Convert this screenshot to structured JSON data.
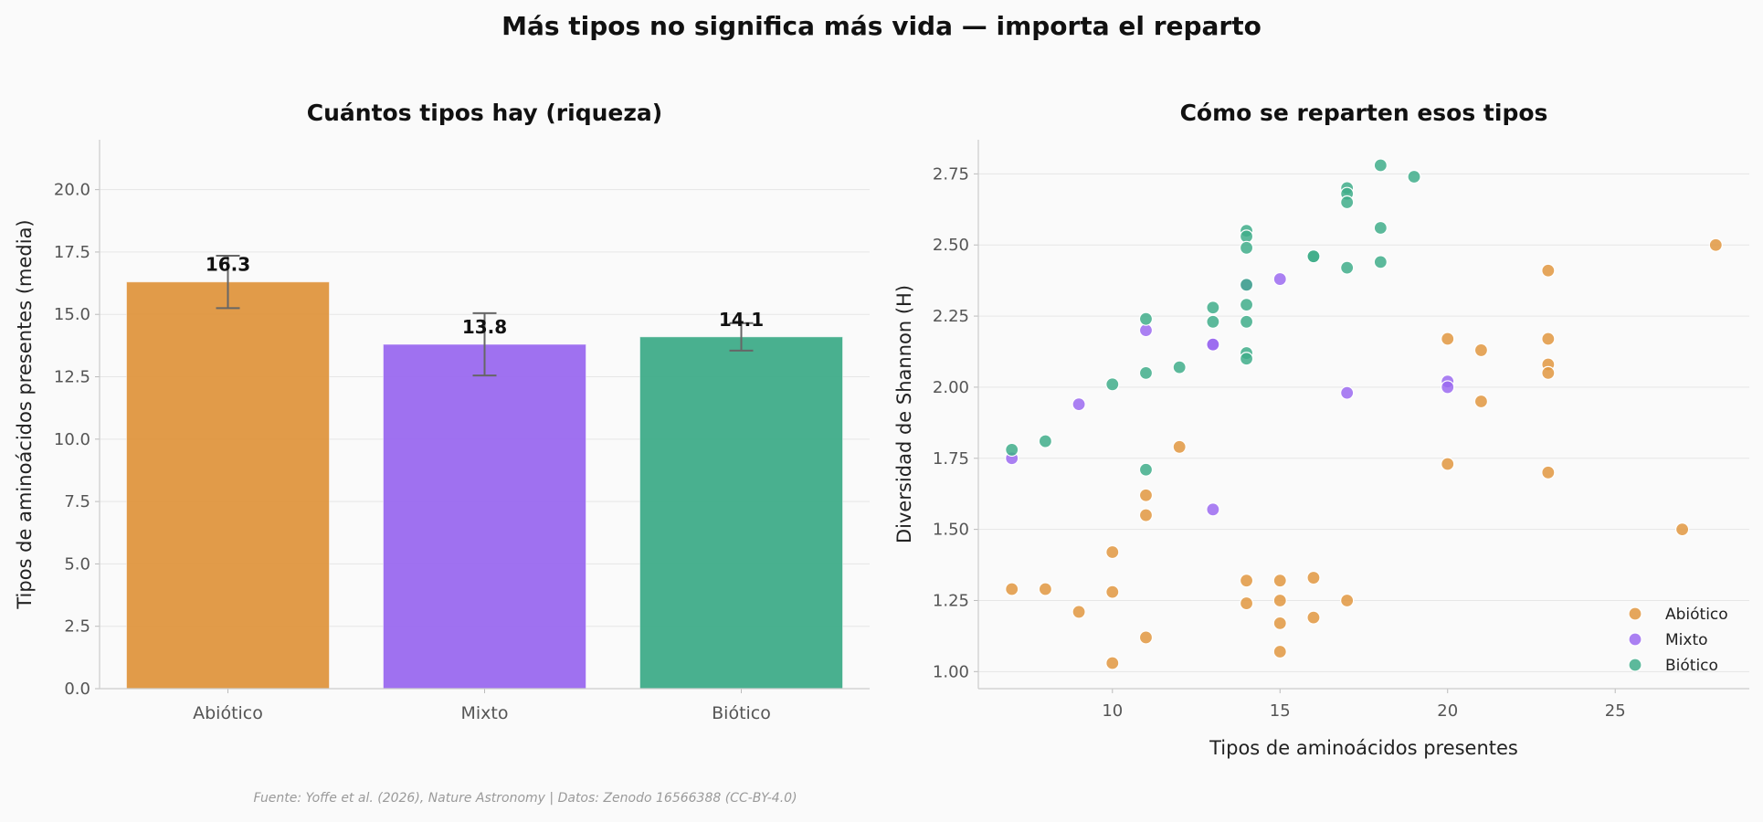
{
  "page": {
    "suptitle": "Más tipos no significa más vida — importa el reparto",
    "source": "Fuente: Yoffe et al. (2026), Nature Astronomy | Datos: Zenodo 16566388 (CC-BY-4.0)"
  },
  "colors": {
    "abiotic": "#e09640",
    "mixed": "#9b6af0",
    "biotic": "#40ad8a"
  },
  "chart_data": [
    {
      "type": "bar",
      "title": "Cuántos tipos hay (riqueza)",
      "xlabel": "",
      "ylabel": "Tipos de aminoácidos presentes (media)",
      "ylim": [
        0,
        22
      ],
      "yticks": [
        "0.0",
        "2.5",
        "5.0",
        "7.5",
        "10.0",
        "12.5",
        "15.0",
        "17.5",
        "20.0"
      ],
      "categories": [
        "Abiótico",
        "Mixto",
        "Biótico"
      ],
      "values": [
        16.3,
        13.8,
        14.1
      ],
      "value_labels": [
        "16.3",
        "13.8",
        "14.1"
      ],
      "errors": [
        1.05,
        1.25,
        0.55
      ],
      "grid": true
    },
    {
      "type": "scatter",
      "title": "Cómo se reparten esos tipos",
      "xlabel": "Tipos de aminoácidos presentes",
      "ylabel": "Diversidad de Shannon (H)",
      "xlim": [
        6,
        29
      ],
      "ylim": [
        0.94,
        2.87
      ],
      "xticks": [
        "10",
        "15",
        "20",
        "25"
      ],
      "yticks": [
        "1.00",
        "1.25",
        "1.50",
        "1.75",
        "2.00",
        "2.25",
        "2.50",
        "2.75"
      ],
      "legend_position": "bottom-right",
      "grid": true,
      "series": [
        {
          "name": "Abiótico",
          "points": [
            [
              7,
              1.29
            ],
            [
              8,
              1.29
            ],
            [
              9,
              1.21
            ],
            [
              10,
              1.42
            ],
            [
              10,
              1.28
            ],
            [
              10,
              1.03
            ],
            [
              11,
              1.62
            ],
            [
              11,
              1.55
            ],
            [
              11,
              1.12
            ],
            [
              12,
              1.79
            ],
            [
              14,
              1.32
            ],
            [
              14,
              1.24
            ],
            [
              15,
              1.32
            ],
            [
              15,
              1.25
            ],
            [
              15,
              1.17
            ],
            [
              15,
              1.07
            ],
            [
              16,
              1.33
            ],
            [
              16,
              1.19
            ],
            [
              17,
              1.25
            ],
            [
              20,
              2.17
            ],
            [
              20,
              1.73
            ],
            [
              21,
              2.13
            ],
            [
              21,
              1.95
            ],
            [
              23,
              2.41
            ],
            [
              23,
              2.17
            ],
            [
              23,
              2.08
            ],
            [
              23,
              2.05
            ],
            [
              23,
              1.7
            ],
            [
              27,
              1.5
            ],
            [
              28,
              2.5
            ]
          ]
        },
        {
          "name": "Mixto",
          "points": [
            [
              7,
              1.75
            ],
            [
              9,
              1.94
            ],
            [
              11,
              2.2
            ],
            [
              13,
              2.15
            ],
            [
              13,
              2.15
            ],
            [
              13,
              1.57
            ],
            [
              14,
              2.36
            ],
            [
              15,
              2.38
            ],
            [
              17,
              1.98
            ],
            [
              20,
              2.02
            ],
            [
              20,
              2.0
            ]
          ]
        },
        {
          "name": "Biótico",
          "points": [
            [
              7,
              1.78
            ],
            [
              8,
              1.81
            ],
            [
              10,
              2.01
            ],
            [
              11,
              2.24
            ],
            [
              11,
              2.05
            ],
            [
              11,
              1.71
            ],
            [
              12,
              2.07
            ],
            [
              13,
              2.28
            ],
            [
              13,
              2.23
            ],
            [
              14,
              2.55
            ],
            [
              14,
              2.53
            ],
            [
              14,
              2.49
            ],
            [
              14,
              2.36
            ],
            [
              14,
              2.29
            ],
            [
              14,
              2.23
            ],
            [
              14,
              2.12
            ],
            [
              14,
              2.1
            ],
            [
              16,
              2.46
            ],
            [
              16,
              2.46
            ],
            [
              17,
              2.7
            ],
            [
              17,
              2.68
            ],
            [
              17,
              2.65
            ],
            [
              17,
              2.42
            ],
            [
              18,
              2.78
            ],
            [
              18,
              2.56
            ],
            [
              18,
              2.44
            ],
            [
              19,
              2.74
            ]
          ]
        }
      ]
    }
  ]
}
